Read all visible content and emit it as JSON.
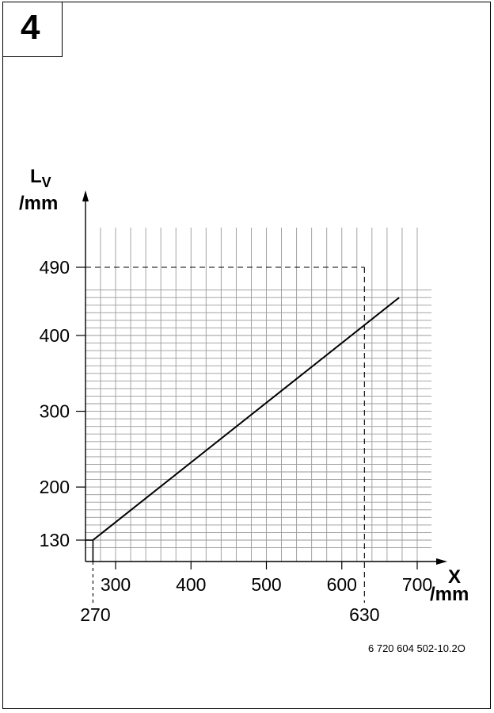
{
  "figure_number": "4",
  "document_code": "6 720 604 502-10.2O",
  "chart_data": {
    "type": "line",
    "ylabel_main": "L",
    "ylabel_sub": "V",
    "ylabel_unit": "/mm",
    "xlabel_main": "X",
    "xlabel_unit": "/mm",
    "xlim": [
      270,
      730
    ],
    "ylim": [
      130,
      460
    ],
    "x_ticks": [
      300,
      400,
      500,
      600,
      700
    ],
    "y_ticks": [
      130,
      200,
      300,
      400,
      490
    ],
    "grid": true,
    "series": [
      {
        "x": [
          270,
          676
        ],
        "y": [
          130,
          450
        ]
      }
    ],
    "annotations": [
      {
        "type": "dashed-guide",
        "x": 630,
        "y": 490,
        "x_label": "630"
      },
      {
        "type": "dashed-guide",
        "x": 270,
        "x_label": "270"
      }
    ]
  }
}
